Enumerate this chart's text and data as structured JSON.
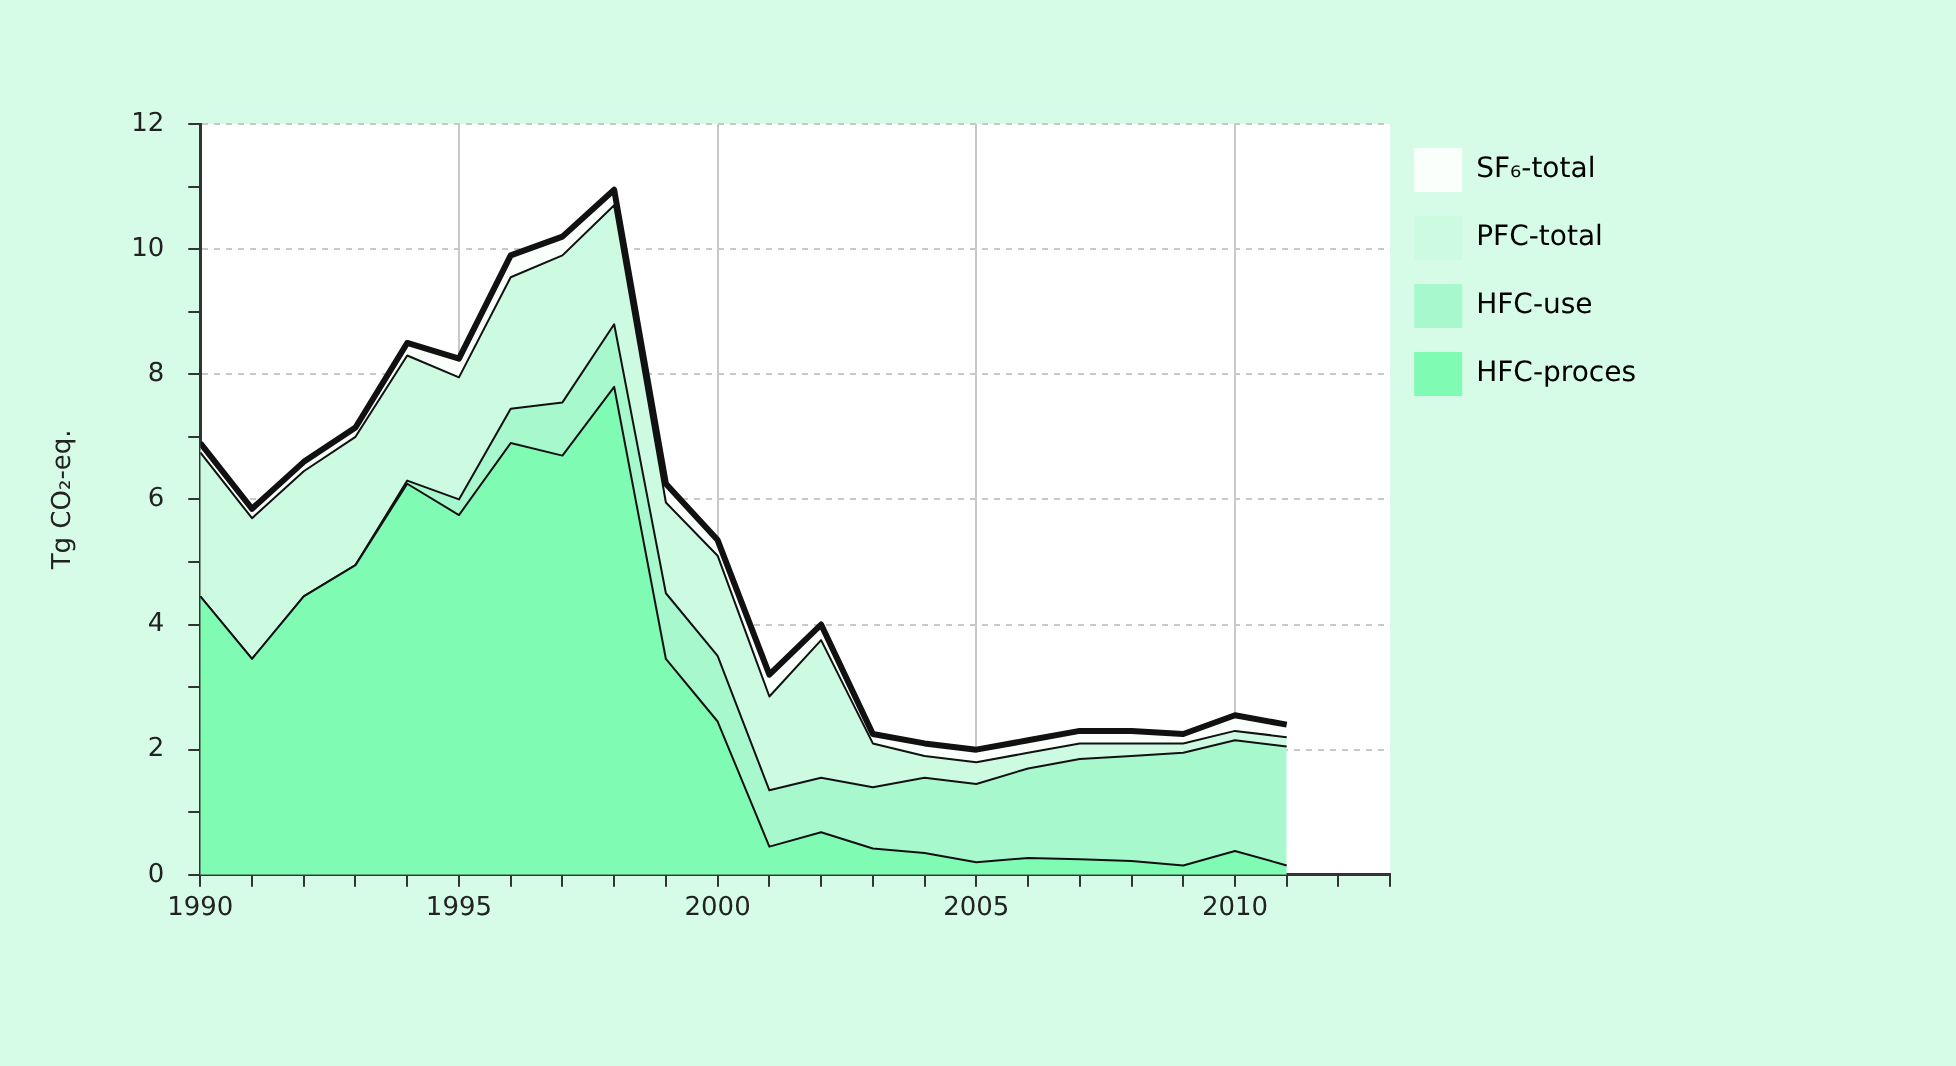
{
  "chart_data": {
    "type": "area",
    "stacked": true,
    "ylabel": "Tg CO₂-eq.",
    "x": [
      1990,
      1991,
      1992,
      1993,
      1994,
      1995,
      1996,
      1997,
      1998,
      1999,
      2000,
      2001,
      2002,
      2003,
      2004,
      2005,
      2006,
      2007,
      2008,
      2009,
      2010,
      2011
    ],
    "series": [
      {
        "name": "HFC-proces",
        "color": "#80fbb4",
        "values": [
          4.45,
          3.45,
          4.45,
          4.95,
          6.25,
          5.75,
          6.9,
          6.7,
          7.8,
          3.45,
          2.45,
          0.45,
          0.68,
          0.42,
          0.35,
          0.2,
          0.27,
          0.25,
          0.22,
          0.15,
          0.38,
          0.15
        ]
      },
      {
        "name": "HFC-use",
        "color": "#a8f8cd",
        "values": [
          0,
          0,
          0,
          0,
          0.05,
          0.25,
          0.55,
          0.85,
          1.0,
          1.05,
          1.05,
          0.9,
          0.87,
          0.98,
          1.2,
          1.25,
          1.43,
          1.6,
          1.68,
          1.8,
          1.77,
          1.9
        ]
      },
      {
        "name": "PFC-total",
        "color": "#ccfbe2",
        "values": [
          2.3,
          2.25,
          2.0,
          2.05,
          2.0,
          1.95,
          2.1,
          2.35,
          1.9,
          1.45,
          1.6,
          1.5,
          2.2,
          0.7,
          0.35,
          0.35,
          0.25,
          0.25,
          0.2,
          0.15,
          0.15,
          0.15
        ]
      },
      {
        "name": "SF₆-total",
        "color": "#fafffc",
        "values": [
          0.15,
          0.15,
          0.15,
          0.15,
          0.2,
          0.3,
          0.35,
          0.3,
          0.25,
          0.3,
          0.25,
          0.35,
          0.25,
          0.15,
          0.2,
          0.2,
          0.2,
          0.2,
          0.2,
          0.15,
          0.25,
          0.2
        ]
      }
    ],
    "xlim": [
      1990,
      2013
    ],
    "xticks": [
      1990,
      {
        "value": 1991,
        "label": null
      },
      {
        "value": 1992,
        "label": null
      },
      {
        "value": 1993,
        "label": null
      },
      {
        "value": 1994,
        "label": null
      },
      1995,
      {
        "value": 1996,
        "label": null
      },
      {
        "value": 1997,
        "label": null
      },
      {
        "value": 1998,
        "label": null
      },
      {
        "value": 1999,
        "label": null
      },
      2000,
      {
        "value": 2001,
        "label": null
      },
      {
        "value": 2002,
        "label": null
      },
      {
        "value": 2003,
        "label": null
      },
      {
        "value": 2004,
        "label": null
      },
      2005,
      {
        "value": 2006,
        "label": null
      },
      {
        "value": 2007,
        "label": null
      },
      {
        "value": 2008,
        "label": null
      },
      {
        "value": 2009,
        "label": null
      },
      2010,
      {
        "value": 2011,
        "label": null
      },
      {
        "value": 2012,
        "label": null
      },
      {
        "value": 2013,
        "label": null
      }
    ],
    "ylim": [
      0,
      12
    ],
    "yticks": [
      0,
      {
        "value": 1,
        "label": null
      },
      2,
      {
        "value": 3,
        "label": null
      },
      4,
      {
        "value": 5,
        "label": null
      },
      6,
      {
        "value": 7,
        "label": null
      },
      8,
      {
        "value": 9,
        "label": null
      },
      10,
      {
        "value": 11,
        "label": null
      },
      12
    ],
    "grid": true,
    "legend": "right"
  }
}
